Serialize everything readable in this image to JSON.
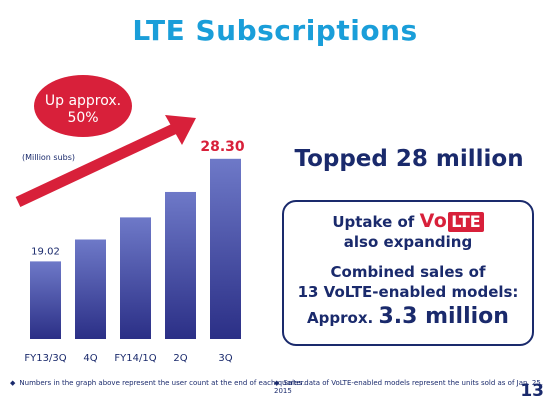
{
  "slide": {
    "title": "LTE Subscriptions",
    "headline": "Topped 28 million",
    "page_number": "13"
  },
  "chart_data": {
    "type": "bar",
    "categories": [
      "FY13/3Q",
      "4Q",
      "FY14/1Q",
      "2Q",
      "3Q"
    ],
    "values": [
      19.02,
      21.0,
      23.0,
      25.3,
      28.3
    ],
    "unit_label": "(Million subs)",
    "first_label": "19.02",
    "last_label": "28.30",
    "ylim": [
      12,
      30
    ],
    "bar_color_top": "#6e79c8",
    "bar_color_bottom": "#2b2f86",
    "callout": {
      "line1": "Up approx.",
      "line2": "50%",
      "color": "#d8203a"
    },
    "arrow_color": "#d8203a",
    "value_label_color": "#d8203a"
  },
  "box": {
    "uptake_prefix": "Uptake of",
    "volte_vo": "Vo",
    "volte_lte": "LTE",
    "expanding": "also expanding",
    "combined_line1": "Combined sales of",
    "combined_line2": "13 VoLTE-enabled models:",
    "approx_prefix": "Approx.",
    "approx_value": "3.3 million"
  },
  "footnotes": {
    "left": "Numbers in the graph above represent the user count at the end of each quarter.",
    "right": "Sales data of VoLTE-enabled models represent the units sold as of Jan. 25, 2015"
  },
  "colors": {
    "title": "#1a9ed9",
    "navy": "#1a2a6c",
    "red": "#d8203a"
  }
}
